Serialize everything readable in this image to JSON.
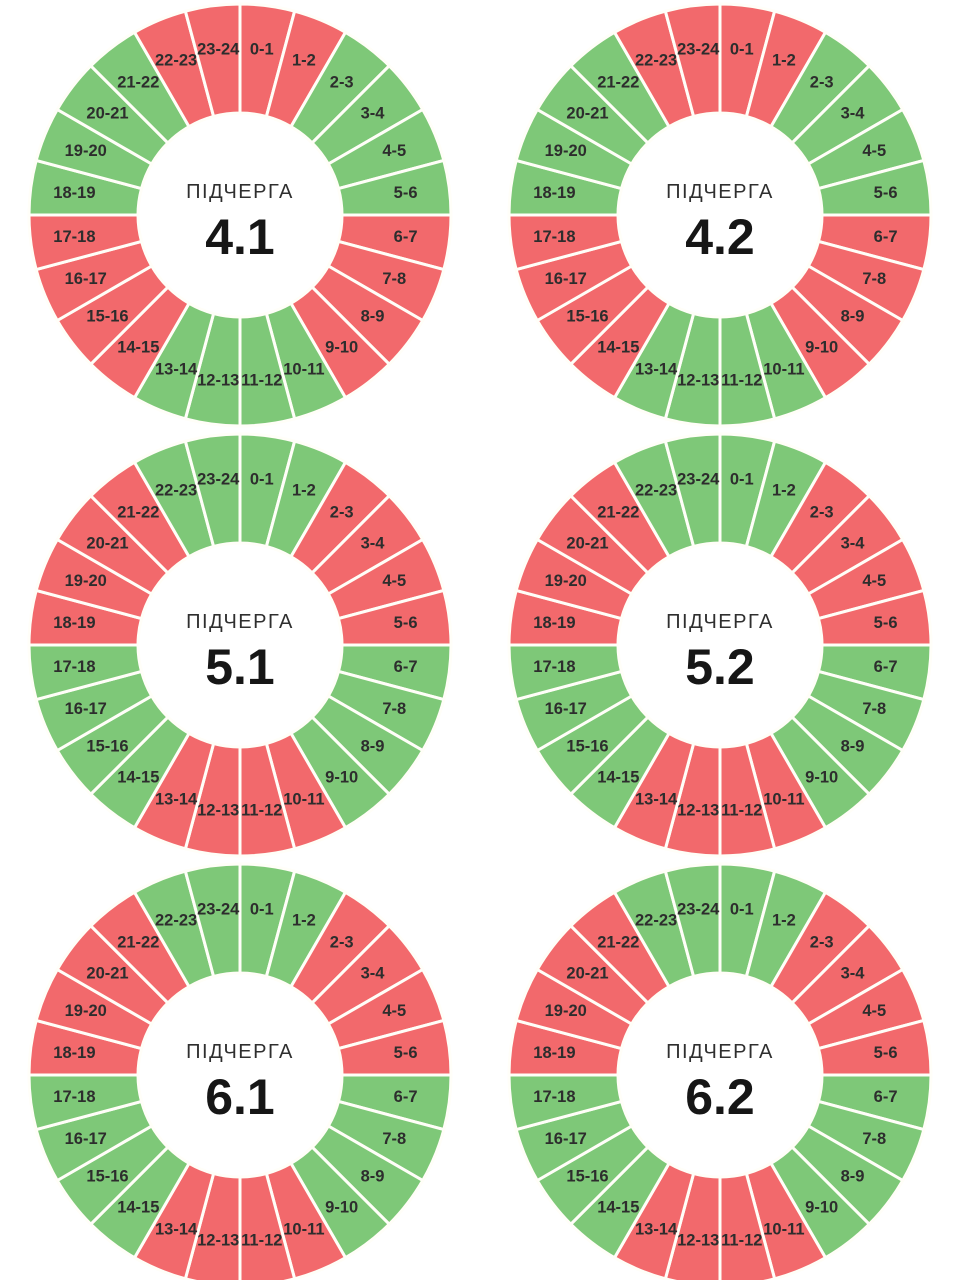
{
  "page": {
    "background": "#FFFFFF"
  },
  "chart_data": {
    "type": "pie",
    "variant": "donut, 24 equal hour segments per ring, 6 rings in 2x3 grid",
    "legend": "none",
    "categories": [
      "0-1",
      "1-2",
      "2-3",
      "3-4",
      "4-5",
      "5-6",
      "6-7",
      "7-8",
      "8-9",
      "9-10",
      "10-11",
      "11-12",
      "12-13",
      "13-14",
      "14-15",
      "15-16",
      "16-17",
      "17-18",
      "18-19",
      "19-20",
      "20-21",
      "21-22",
      "22-23",
      "23-24"
    ],
    "values_per_segment": 1,
    "colors": {
      "green": "#7EC878",
      "red": "#F2696C",
      "separator": "#FFFEF8",
      "segment_label": "#2D2D2D",
      "center_title": "#2F2F2F",
      "center_number": "#161616"
    },
    "charts": [
      {
        "center_label": "ПІДЧЕРГА",
        "center_value": "4.1",
        "statuses": [
          "red",
          "red",
          "green",
          "green",
          "green",
          "green",
          "red",
          "red",
          "red",
          "red",
          "green",
          "green",
          "green",
          "green",
          "red",
          "red",
          "red",
          "red",
          "green",
          "green",
          "green",
          "green",
          "red",
          "red"
        ]
      },
      {
        "center_label": "ПІДЧЕРГА",
        "center_value": "4.2",
        "statuses": [
          "red",
          "red",
          "green",
          "green",
          "green",
          "green",
          "red",
          "red",
          "red",
          "red",
          "green",
          "green",
          "green",
          "green",
          "red",
          "red",
          "red",
          "red",
          "green",
          "green",
          "green",
          "green",
          "red",
          "red"
        ]
      },
      {
        "center_label": "ПІДЧЕРГА",
        "center_value": "5.1",
        "statuses": [
          "green",
          "green",
          "red",
          "red",
          "red",
          "red",
          "green",
          "green",
          "green",
          "green",
          "red",
          "red",
          "red",
          "red",
          "green",
          "green",
          "green",
          "green",
          "red",
          "red",
          "red",
          "red",
          "green",
          "green"
        ]
      },
      {
        "center_label": "ПІДЧЕРГА",
        "center_value": "5.2",
        "statuses": [
          "green",
          "green",
          "red",
          "red",
          "red",
          "red",
          "green",
          "green",
          "green",
          "green",
          "red",
          "red",
          "red",
          "red",
          "green",
          "green",
          "green",
          "green",
          "red",
          "red",
          "red",
          "red",
          "green",
          "green"
        ]
      },
      {
        "center_label": "ПІДЧЕРГА",
        "center_value": "6.1",
        "statuses": [
          "green",
          "green",
          "red",
          "red",
          "red",
          "red",
          "green",
          "green",
          "green",
          "green",
          "red",
          "red",
          "red",
          "red",
          "green",
          "green",
          "green",
          "green",
          "red",
          "red",
          "red",
          "red",
          "green",
          "green"
        ]
      },
      {
        "center_label": "ПІДЧЕРГА",
        "center_value": "6.2",
        "statuses": [
          "green",
          "green",
          "red",
          "red",
          "red",
          "red",
          "green",
          "green",
          "green",
          "green",
          "red",
          "red",
          "red",
          "red",
          "green",
          "green",
          "green",
          "green",
          "red",
          "red",
          "red",
          "red",
          "green",
          "green"
        ]
      }
    ]
  }
}
